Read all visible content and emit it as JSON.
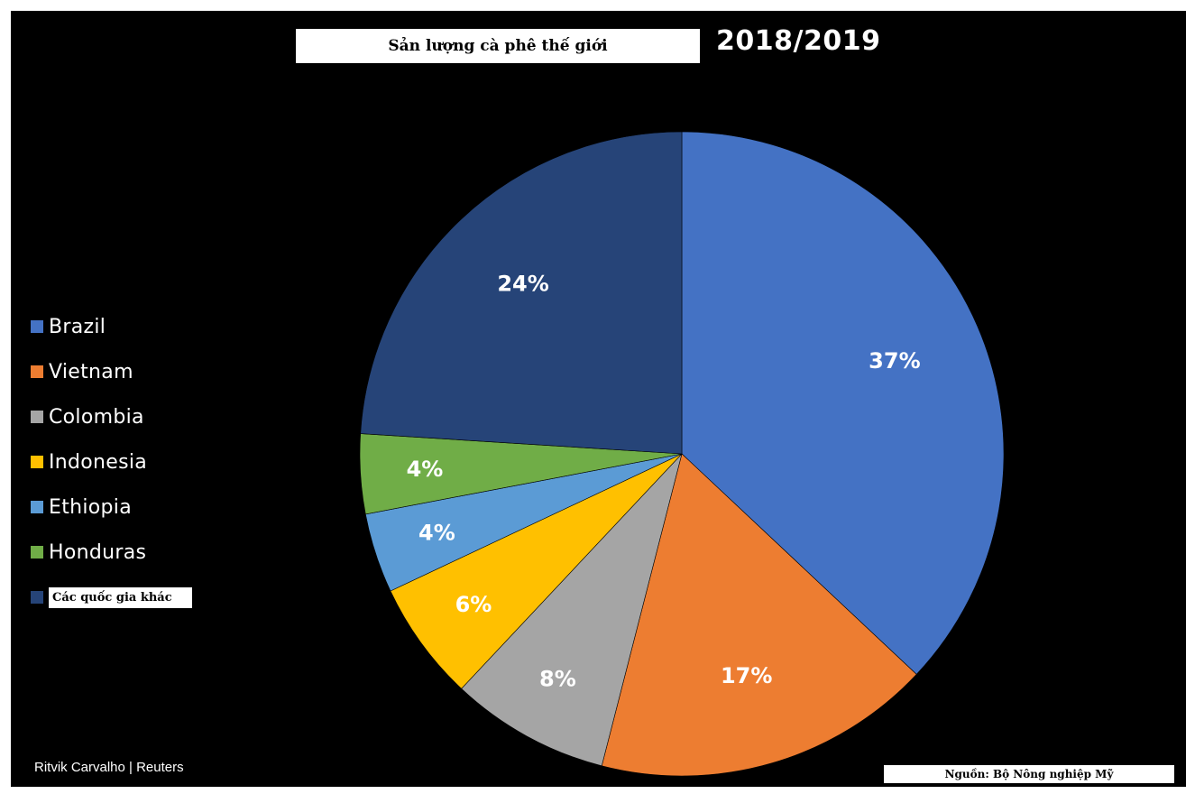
{
  "chart_data": {
    "type": "pie",
    "title": "Sản lượng cà phê thế giới",
    "subtitle": "2018/2019",
    "categories": [
      "Brazil",
      "Vietnam",
      "Colombia",
      "Indonesia",
      "Ethiopia",
      "Honduras",
      "Các quốc gia khác"
    ],
    "values": [
      37,
      17,
      8,
      6,
      4,
      4,
      24
    ],
    "data_labels": [
      "37%",
      "17%",
      "8%",
      "6%",
      "4%",
      "4%",
      "24%"
    ],
    "colors": [
      "#4472C4",
      "#ED7D31",
      "#A5A5A5",
      "#FFC000",
      "#5B9BD5",
      "#70AD47",
      "#264478"
    ],
    "legend_position": "left",
    "credit": "Ritvik Carvalho | Reuters",
    "source": "Nguồn: Bộ Nông nghiệp Mỹ"
  }
}
